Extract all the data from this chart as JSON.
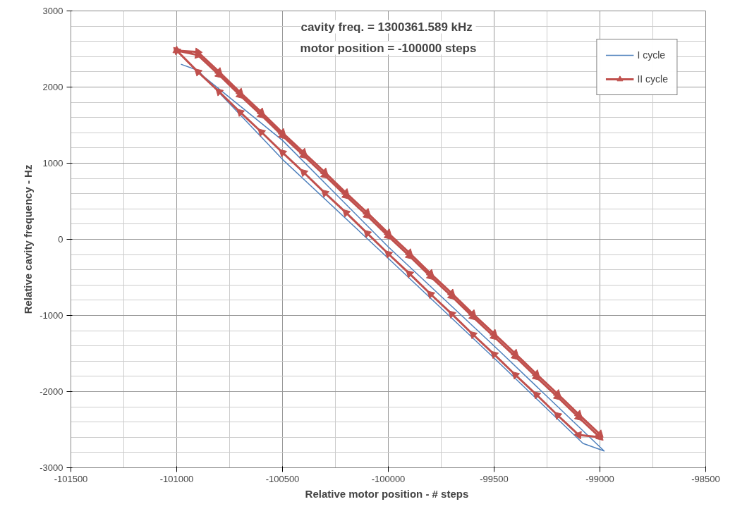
{
  "chart_data": {
    "type": "line",
    "annotations": [
      "cavity freq. = 1300361.589  kHz",
      "motor position = -100000 steps"
    ],
    "xlabel": "Relative motor position - #  steps",
    "ylabel": "Relative cavity frequency - Hz",
    "xlim": [
      -101500,
      -98500
    ],
    "xticks": [
      -101500,
      -101000,
      -100500,
      -100000,
      -99500,
      -99000,
      -98500
    ],
    "ylim": [
      -3000,
      3000
    ],
    "yticks": [
      -3000,
      -2000,
      -1000,
      0,
      1000,
      2000,
      3000
    ],
    "grid": true,
    "legend": "top right",
    "series": [
      {
        "name": "I cycle",
        "color": "#4f81bd",
        "marker": "none",
        "x": [
          -100980,
          -100900,
          -100500,
          -100000,
          -99500,
          -99080,
          -98980,
          -99500,
          -100000,
          -100500,
          -100900
        ],
        "values": [
          2300,
          2220,
          1050,
          -250,
          -1560,
          -2680,
          -2780,
          -1400,
          -100,
          1300,
          2200
        ]
      },
      {
        "name": "II cycle",
        "color": "#c0504d",
        "marker": "triangle",
        "x": [
          -101000,
          -100900,
          -100800,
          -100700,
          -100600,
          -100500,
          -100400,
          -100300,
          -100200,
          -100100,
          -100000,
          -99900,
          -99800,
          -99700,
          -99600,
          -99500,
          -99400,
          -99300,
          -99200,
          -99100,
          -99000,
          -99100,
          -99200,
          -99300,
          -99400,
          -99500,
          -99600,
          -99700,
          -99800,
          -99900,
          -100000,
          -100100,
          -100200,
          -100300,
          -100400,
          -100500,
          -100600,
          -100700,
          -100800,
          -100900,
          -101000,
          -100900,
          -100800,
          -100700,
          -100600,
          -100500,
          -100400,
          -100300,
          -100200,
          -100100,
          -100000,
          -99900,
          -99800,
          -99700,
          -99600,
          -99500,
          -99400,
          -99300,
          -99200,
          -99100,
          -99000
        ],
        "values": [
          2480,
          2420,
          2160,
          1890,
          1630,
          1360,
          1100,
          840,
          570,
          310,
          40,
          -220,
          -490,
          -750,
          -1020,
          -1280,
          -1540,
          -1810,
          -2070,
          -2340,
          -2600,
          -2570,
          -2310,
          -2040,
          -1780,
          -1510,
          -1250,
          -980,
          -720,
          -450,
          -190,
          80,
          350,
          610,
          880,
          1140,
          1410,
          1670,
          1940,
          2200,
          2480,
          2460,
          2200,
          1930,
          1670,
          1400,
          1140,
          880,
          610,
          350,
          80,
          -180,
          -450,
          -710,
          -980,
          -1240,
          -1500,
          -1770,
          -2030,
          -2300,
          -2560
        ]
      }
    ]
  }
}
